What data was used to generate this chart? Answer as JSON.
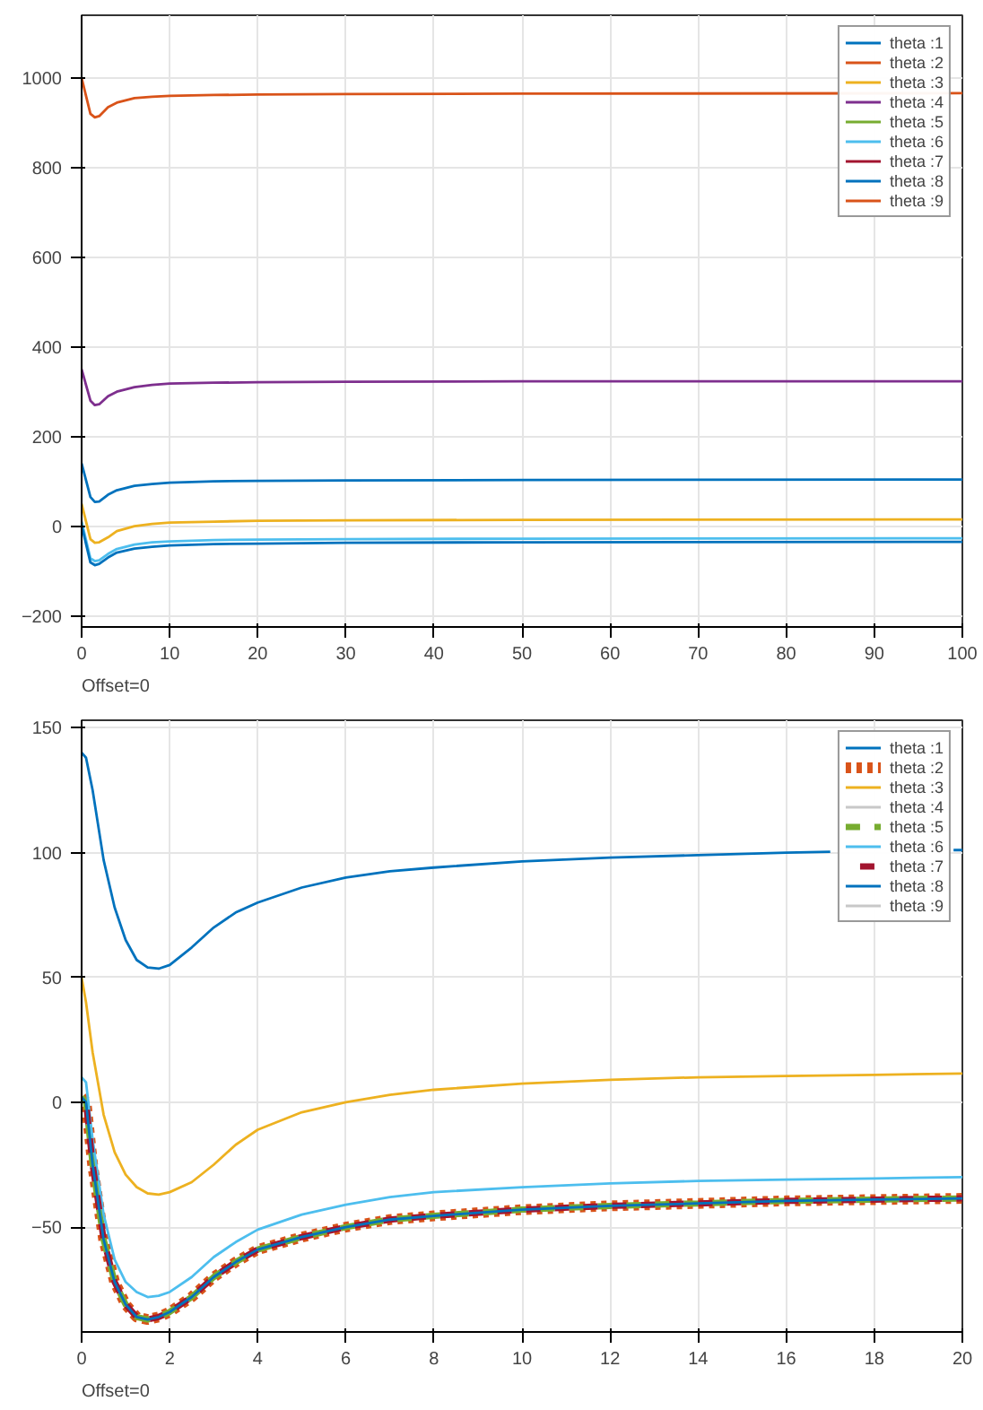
{
  "chart_data": [
    {
      "type": "line",
      "x": [
        0,
        1,
        1.5,
        2,
        3,
        4,
        6,
        8,
        10,
        15,
        20,
        30,
        50,
        100
      ],
      "xlim": [
        0,
        100
      ],
      "ylim": [
        -225,
        1140
      ],
      "xticks": [
        0,
        10,
        20,
        30,
        40,
        50,
        60,
        70,
        80,
        90,
        100
      ],
      "yticks": [
        -200,
        0,
        200,
        400,
        600,
        800,
        1000
      ],
      "grid": true,
      "legend": "top right",
      "line_style": "solid",
      "annotations": [
        "Offset=0"
      ],
      "series": [
        {
          "name": "theta :1",
          "color": "#0072bd",
          "values": [
            140,
            65,
            54,
            55,
            70,
            80,
            90,
            94,
            97,
            100,
            101,
            102,
            103,
            104
          ]
        },
        {
          "name": "theta :2",
          "color": "#d95319",
          "values": [
            null,
            null,
            null,
            null,
            null,
            null,
            null,
            null,
            null,
            null,
            null,
            null,
            null,
            null
          ]
        },
        {
          "name": "theta :3",
          "color": "#edb120",
          "values": [
            50,
            -29,
            -37,
            -36,
            -25,
            -11,
            0,
            5,
            8,
            10,
            12,
            13,
            14,
            15
          ]
        },
        {
          "name": "theta :4",
          "color": "#7e2f8e",
          "values": [
            350,
            280,
            270,
            272,
            290,
            300,
            310,
            315,
            318,
            320,
            321,
            322,
            323,
            323
          ]
        },
        {
          "name": "theta :5",
          "color": "#77ac30",
          "values": [
            null,
            null,
            null,
            null,
            null,
            null,
            null,
            null,
            null,
            null,
            null,
            null,
            null,
            null
          ]
        },
        {
          "name": "theta :6",
          "color": "#4dbeee",
          "values": [
            10,
            -72,
            -78,
            -76,
            -62,
            -51,
            -41,
            -36,
            -34,
            -31,
            -30,
            -29,
            -28,
            -27
          ]
        },
        {
          "name": "theta :7",
          "color": "#a2142f",
          "values": [
            null,
            null,
            null,
            null,
            null,
            null,
            null,
            null,
            null,
            null,
            null,
            null,
            null,
            null
          ]
        },
        {
          "name": "theta :8",
          "color": "#0072bd",
          "values": [
            2,
            -81,
            -87,
            -84,
            -70,
            -59,
            -50,
            -46,
            -43,
            -40,
            -39,
            -37,
            -36,
            -35
          ]
        },
        {
          "name": "theta :9",
          "color": "#d95319",
          "values": [
            1000,
            920,
            912,
            915,
            935,
            945,
            955,
            958,
            960,
            962,
            963,
            964,
            965,
            966
          ]
        }
      ]
    },
    {
      "type": "line",
      "x": [
        0,
        0.1,
        0.25,
        0.5,
        0.75,
        1,
        1.25,
        1.5,
        1.75,
        2,
        2.5,
        3,
        3.5,
        4,
        5,
        6,
        7,
        8,
        10,
        12,
        14,
        16,
        18,
        20
      ],
      "xlim": [
        0,
        20
      ],
      "ylim": [
        -92,
        153
      ],
      "xticks": [
        0,
        2,
        4,
        6,
        8,
        10,
        12,
        14,
        16,
        18,
        20
      ],
      "yticks": [
        -50,
        0,
        50,
        100,
        150
      ],
      "grid": true,
      "legend": "top right",
      "annotations": [
        "Offset=0"
      ],
      "series": [
        {
          "name": "theta :1",
          "color": "#0072bd",
          "line_style": "solid",
          "x": [
            0,
            0.1,
            0.25,
            0.5,
            0.75,
            1,
            1.25,
            1.5,
            1.75,
            2,
            2.5,
            3,
            3.5,
            4,
            5,
            6,
            7,
            8,
            10,
            12,
            14,
            16,
            17,
            18,
            19.8,
            20
          ],
          "values": [
            140,
            138,
            125,
            97,
            78,
            65,
            57,
            54,
            53.5,
            55,
            62,
            70,
            76,
            80,
            86,
            90,
            92.5,
            94,
            96.5,
            98,
            99,
            100,
            100.3,
            null,
            101,
            101
          ]
        },
        {
          "name": "theta :2",
          "color": "#d95319",
          "line_style": "dotted",
          "values": [
            2,
            0,
            -25,
            -55,
            -72,
            -81,
            -86,
            -87,
            -86,
            -84,
            -78,
            -70,
            -64,
            -59,
            -54,
            -50,
            -47,
            -45.5,
            -43,
            -41.5,
            -40.5,
            -39.5,
            -39,
            -38.5
          ]
        },
        {
          "name": "theta :3",
          "color": "#edb120",
          "line_style": "solid",
          "values": [
            50,
            40,
            20,
            -5,
            -20,
            -29,
            -34,
            -36.5,
            -37,
            -36,
            -32,
            -25,
            -17,
            -11,
            -4,
            0,
            3,
            5,
            7.5,
            9,
            10,
            10.5,
            11,
            11.5
          ]
        },
        {
          "name": "theta :4",
          "color": "#c8c8c8",
          "line_style": "solid",
          "values": [
            null,
            null,
            null,
            null,
            null,
            null,
            null,
            null,
            null,
            null,
            null,
            null,
            null,
            null,
            null,
            null,
            null,
            null,
            null,
            null,
            null,
            null,
            null,
            null
          ]
        },
        {
          "name": "theta :5",
          "color": "#77ac30",
          "line_style": "dashed",
          "values": [
            2,
            0,
            -25,
            -55,
            -72,
            -81,
            -86,
            -87,
            -86,
            -84,
            -78,
            -70,
            -64,
            -59,
            -54,
            -50,
            -47,
            -45.5,
            -43,
            -41.5,
            -40.5,
            -39.5,
            -39,
            -38.5
          ]
        },
        {
          "name": "theta :6",
          "color": "#4dbeee",
          "line_style": "solid",
          "values": [
            10,
            8,
            -15,
            -45,
            -63,
            -72,
            -76,
            -78,
            -77.5,
            -76,
            -70,
            -62,
            -56,
            -51,
            -45,
            -41,
            -38,
            -36,
            -34,
            -32.5,
            -31.5,
            -31,
            -30.5,
            -30
          ]
        },
        {
          "name": "theta :7",
          "color": "#a2142f",
          "line_style": "dashed",
          "values": [
            2,
            0,
            -25,
            -55,
            -72,
            -81,
            -86,
            -87,
            -86,
            -84,
            -78,
            -70,
            -64,
            -59,
            -54,
            -50,
            -47,
            -45.5,
            -43,
            -41.5,
            -40.5,
            -39.5,
            -39,
            -38.5
          ]
        },
        {
          "name": "theta :8",
          "color": "#0072bd",
          "line_style": "solid",
          "values": [
            2,
            0,
            -25,
            -55,
            -72,
            -81,
            -86,
            -87,
            -86,
            -84,
            -78,
            -70,
            -64,
            -59,
            -54,
            -50,
            -47,
            -45.5,
            -43,
            -41.5,
            -40.5,
            -39.5,
            -39,
            -38.5
          ]
        },
        {
          "name": "theta :9",
          "color": "#c8c8c8",
          "line_style": "solid",
          "values": [
            null,
            null,
            null,
            null,
            null,
            null,
            null,
            null,
            null,
            null,
            null,
            null,
            null,
            null,
            null,
            null,
            null,
            null,
            null,
            null,
            null,
            null,
            null,
            null
          ]
        }
      ]
    }
  ]
}
